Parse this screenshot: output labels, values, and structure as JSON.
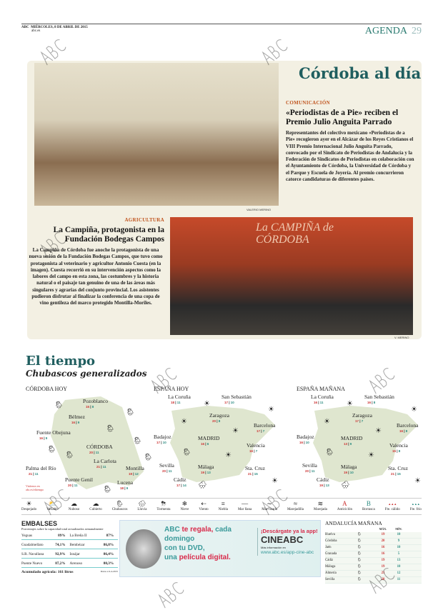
{
  "header": {
    "brand": "ABC",
    "date": "MIÉRCOLES, 8 DE ABRIL DE 2015",
    "edition": "abc.es",
    "section": "AGENDA",
    "page": "29"
  },
  "watermark": "ABC",
  "cordoba": {
    "title": "Córdoba al día",
    "story1": {
      "section": "COMUNICACIÓN",
      "headline": "«Periodistas de a Pie» reciben el Premio Julio Anguita Parrado",
      "body": "Representantes del colectivo mexicano «Periodistas de a Pie» recogieron ayer en el Alcázar de los Reyes Cristianos el VIII Premio Internacional Julio Anguita Parrado, convocado por el Sindicato de Periodistas de Andalucía y la Federación de Sindicatos de Periodistas en colaboración con el Ayuntamiento de Córdoba, la Universidad de Córdoba y el Parque y Escuela de Joyería. Al premio concurrieron catorce candidaturas de diferentes países.",
      "credit": "VALERIO MERINO"
    },
    "story2": {
      "section": "AGRICULTURA",
      "headline": "La Campiña, protagonista en la Fundación Bodegas Campos",
      "body": "La Campiña de Córdoba fue anoche la protagonista de una nueva sesión de la Fundación Bodegas Campos, que tuvo como protagonista al veterinario y agricultor Antonio Cuesta (en la imagen). Cuesta recorrió en su intervención aspectos como la labores del campo en esta zona, las costumbres y la historia natural o el paisaje tan genuino de una de las áreas más singulares y agrarias del conjunto provincial. Los asistentes pudieron disfrutar al finalizar la conferencia de una copa de vino gentileza del marco protegido Montilla-Moriles.",
      "credit": "V. MERINO",
      "banner": "La CAMPIÑA de CÓRDOBA"
    }
  },
  "weather": {
    "title": "El tiempo",
    "subtitle": "Chubascos generalizados",
    "cordoba_hoy": {
      "title": "CÓRDOBA HOY",
      "note": "Visítenos en abc.es/eltiempo",
      "cities": [
        {
          "name": "Pozoblanco",
          "max": "15",
          "min": "8"
        },
        {
          "name": "Bélmez",
          "max": "16",
          "min": "9"
        },
        {
          "name": "Fuente Obejuna",
          "max": "16",
          "min": "9"
        },
        {
          "name": "CÓRDOBA",
          "max": "20",
          "min": "11"
        },
        {
          "name": "La Carlota",
          "max": "21",
          "min": "11"
        },
        {
          "name": "Palma del Río",
          "max": "21",
          "min": "11"
        },
        {
          "name": "Puente Genil",
          "max": "20",
          "min": "11"
        },
        {
          "name": "Montilla",
          "max": "19",
          "min": "12"
        },
        {
          "name": "Lucena",
          "max": "18",
          "min": "9"
        }
      ]
    },
    "espana_hoy": {
      "title": "ESPAÑA HOY",
      "cities": [
        {
          "name": "La Coruña",
          "max": "18",
          "min": "11"
        },
        {
          "name": "San Sebastián",
          "max": "17",
          "min": "10"
        },
        {
          "name": "Zaragoza",
          "max": "20",
          "min": "8"
        },
        {
          "name": "Barcelona",
          "max": "17",
          "min": "7"
        },
        {
          "name": "Badajoz",
          "max": "17",
          "min": "10"
        },
        {
          "name": "MADRID",
          "max": "16",
          "min": "6"
        },
        {
          "name": "Valencia",
          "max": "16",
          "min": "7"
        },
        {
          "name": "Sevilla",
          "max": "20",
          "min": "11"
        },
        {
          "name": "Málaga",
          "max": "19",
          "min": "13"
        },
        {
          "name": "Cádiz",
          "max": "17",
          "min": "14"
        },
        {
          "name": "Sta. Cruz",
          "max": "21",
          "min": "15"
        }
      ]
    },
    "espana_manana": {
      "title": "ESPAÑA MAÑANA",
      "cities": [
        {
          "name": "La Coruña",
          "max": "16",
          "min": "11"
        },
        {
          "name": "San Sebastián",
          "max": "16",
          "min": "8"
        },
        {
          "name": "Zaragoza",
          "max": "17",
          "min": "7"
        },
        {
          "name": "Barcelona",
          "max": "16",
          "min": "8"
        },
        {
          "name": "Badajoz",
          "max": "16",
          "min": "10"
        },
        {
          "name": "MADRID",
          "max": "13",
          "min": "9"
        },
        {
          "name": "Valencia",
          "max": "15",
          "min": "8"
        },
        {
          "name": "Sevilla",
          "max": "20",
          "min": "11"
        },
        {
          "name": "Málaga",
          "max": "19",
          "min": "10"
        },
        {
          "name": "Cádiz",
          "max": "19",
          "min": "13"
        },
        {
          "name": "Sta. Cruz",
          "max": "21",
          "min": "15"
        }
      ]
    },
    "legend": [
      {
        "icon": "☀",
        "label": "Despejado"
      },
      {
        "icon": "⛅",
        "label": "Variable"
      },
      {
        "icon": "☁",
        "label": "Nuboso"
      },
      {
        "icon": "☁",
        "label": "Cubierto"
      },
      {
        "icon": "🌦",
        "label": "Chubascos"
      },
      {
        "icon": "🌧",
        "label": "Lluvia"
      },
      {
        "icon": "⛈",
        "label": "Tormenta"
      },
      {
        "icon": "❄",
        "label": "Nieve"
      },
      {
        "icon": "⇠",
        "label": "Viento"
      },
      {
        "icon": "≡",
        "label": "Niebla"
      },
      {
        "icon": "—",
        "label": "Mar llana"
      },
      {
        "icon": "∼",
        "label": "Mar rizada"
      },
      {
        "icon": "≈",
        "label": "Marejadilla"
      },
      {
        "icon": "≋",
        "label": "Marejada"
      },
      {
        "icon": "A",
        "label": "Anticiclón"
      },
      {
        "icon": "B",
        "label": "Borrasca"
      },
      {
        "icon": "▲▲▲",
        "label": "Fte. cálido"
      },
      {
        "icon": "▲▲▲",
        "label": "Fte. frío"
      }
    ]
  },
  "embalses": {
    "title": "EMBALSES",
    "desc": "Porcentajes sobre la capacidad total actualizados semanalmente",
    "rows": [
      [
        {
          "name": "Yeguas",
          "value": "89%"
        },
        {
          "name": "La Breña II",
          "value": "87%"
        }
      ],
      [
        {
          "name": "Guadalmellato",
          "value": "74,1%"
        },
        {
          "name": "Bembézar",
          "value": "86,8%"
        }
      ],
      [
        {
          "name": "S.R. Navallana",
          "value": "92,9%"
        },
        {
          "name": "Iznájar",
          "value": "86,4%"
        }
      ],
      [
        {
          "name": "Puente Nuevo",
          "value": "87,2%"
        },
        {
          "name": "Arenoso",
          "value": "80,3%"
        }
      ]
    ],
    "acumulado": "Acumulado agrícola: 161 litros",
    "source": "Datos a 6-4-2015"
  },
  "ad": {
    "line1a": "ABC",
    "line1b": "te regala,",
    "line1c": "cada domingo",
    "line2": "con tu DVD,",
    "line3a": "una",
    "line3b": "película digital.",
    "cta": "¡Descárgate ya la app!",
    "brand": "CINEABC",
    "small": "Más información en",
    "url": "www.abc.es/app-cine-abc"
  },
  "andalucia": {
    "title": "ANDALUCÍA MAÑANA",
    "max_label": "MÁX.",
    "min_label": "MÍN.",
    "rows": [
      {
        "city": "Huelva",
        "max": "19",
        "min": "10"
      },
      {
        "city": "Córdoba",
        "max": "20",
        "min": "9"
      },
      {
        "city": "Jaén",
        "max": "16",
        "min": "10"
      },
      {
        "city": "Granada",
        "max": "16",
        "min": "5"
      },
      {
        "city": "Cádiz",
        "max": "19",
        "min": "13"
      },
      {
        "city": "Málaga",
        "max": "19",
        "min": "10"
      },
      {
        "city": "Almería",
        "max": "21",
        "min": "12"
      },
      {
        "city": "Sevilla",
        "max": "20",
        "min": "11"
      }
    ]
  },
  "colors": {
    "accent": "#1f5e5f",
    "section": "#c0541e",
    "max": "#cc3333",
    "min": "#2a8a80",
    "map": "#dfe6cf"
  }
}
